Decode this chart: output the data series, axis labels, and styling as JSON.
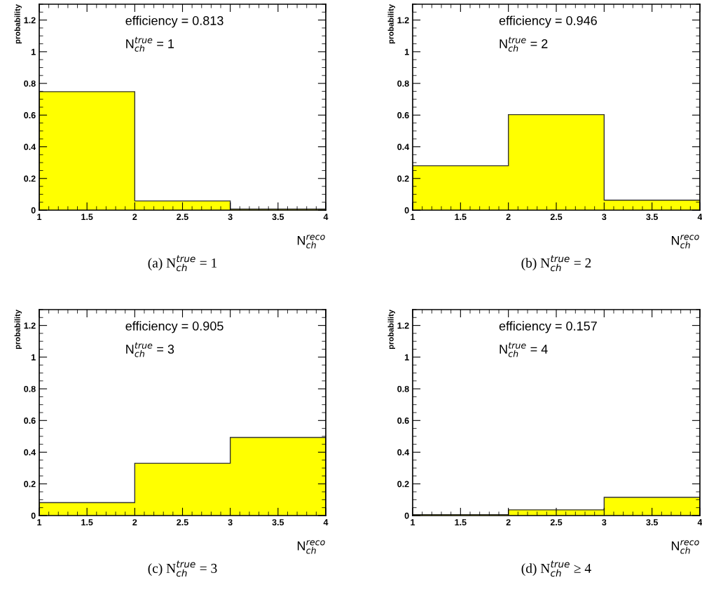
{
  "chart_data": [
    {
      "type": "histogram",
      "title": "(a) N$^{true}$$_{ch}$ = 1",
      "xlabel": "N$^{reco}$$_{ch}$",
      "ylabel": "probability",
      "bins": [
        1,
        2,
        3,
        4
      ],
      "values": [
        0.748,
        0.058,
        0.007
      ],
      "color": "#ffff00",
      "xlim": [
        1,
        4
      ],
      "ylim": [
        0,
        1.3
      ],
      "xticks": [
        1,
        1.5,
        2,
        2.5,
        3,
        3.5,
        4
      ],
      "yticks": [
        0,
        0.2,
        0.4,
        0.6,
        0.8,
        1,
        1.2
      ],
      "grid": false,
      "annotations": [
        "efficiency = 0.813",
        "N$^{true}$$_{ch}$ = 1"
      ]
    },
    {
      "type": "histogram",
      "title": "(b) N$^{true}$$_{ch}$ = 2",
      "xlabel": "N$^{reco}$$_{ch}$",
      "ylabel": "probability",
      "bins": [
        1,
        2,
        3,
        4
      ],
      "values": [
        0.28,
        0.603,
        0.063
      ],
      "color": "#ffff00",
      "xlim": [
        1,
        4
      ],
      "ylim": [
        0,
        1.3
      ],
      "xticks": [
        1,
        1.5,
        2,
        2.5,
        3,
        3.5,
        4
      ],
      "yticks": [
        0,
        0.2,
        0.4,
        0.6,
        0.8,
        1,
        1.2
      ],
      "grid": false,
      "annotations": [
        "efficiency = 0.946",
        "N$^{true}$$_{ch}$ = 2"
      ]
    },
    {
      "type": "histogram",
      "title": "(c) N$^{true}$$_{ch}$ = 3",
      "xlabel": "N$^{reco}$$_{ch}$",
      "ylabel": "probability",
      "bins": [
        1,
        2,
        3,
        4
      ],
      "values": [
        0.082,
        0.33,
        0.493
      ],
      "color": "#ffff00",
      "xlim": [
        1,
        4
      ],
      "ylim": [
        0,
        1.3
      ],
      "xticks": [
        1,
        1.5,
        2,
        2.5,
        3,
        3.5,
        4
      ],
      "yticks": [
        0,
        0.2,
        0.4,
        0.6,
        0.8,
        1,
        1.2
      ],
      "grid": false,
      "annotations": [
        "efficiency = 0.905",
        "N$^{true}$$_{ch}$ = 3"
      ]
    },
    {
      "type": "histogram",
      "title": "(d) N$^{true}$$_{ch}$ ≥ 4",
      "xlabel": "N$^{reco}$$_{ch}$",
      "ylabel": "probability",
      "bins": [
        1,
        2,
        3,
        4
      ],
      "values": [
        0.006,
        0.036,
        0.115
      ],
      "color": "#ffff00",
      "xlim": [
        1,
        4
      ],
      "ylim": [
        0,
        1.3
      ],
      "xticks": [
        1,
        1.5,
        2,
        2.5,
        3,
        3.5,
        4
      ],
      "yticks": [
        0,
        0.2,
        0.4,
        0.6,
        0.8,
        1,
        1.2
      ],
      "grid": false,
      "annotations": [
        "efficiency = 0.157",
        "N$^{true}$$_{ch}$ = 4"
      ]
    }
  ]
}
